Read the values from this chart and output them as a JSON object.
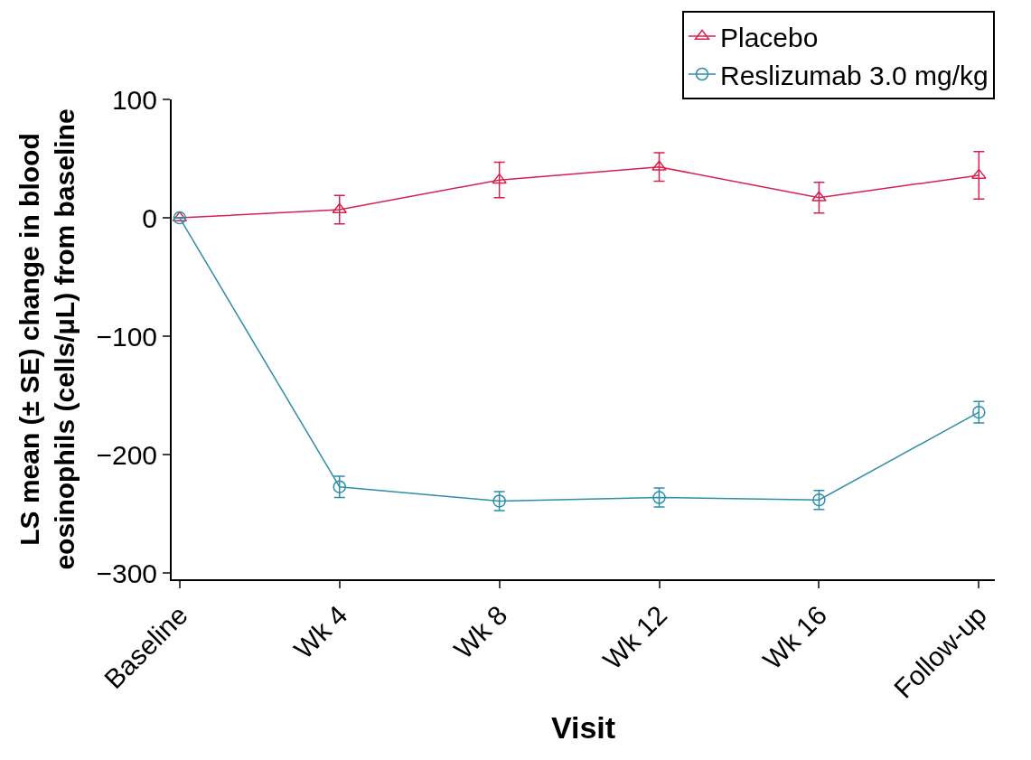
{
  "chart_data": {
    "type": "line",
    "xlabel": "Visit",
    "ylabel": "LS mean (± SE) change in blood\neosinophils (cells/μL) from baseline",
    "categories": [
      "Baseline",
      "Wk 4",
      "Wk 8",
      "Wk 12",
      "Wk 16",
      "Follow-up"
    ],
    "series": [
      {
        "name": "Placebo",
        "color": "#d6204f",
        "marker": "triangle",
        "values": [
          0,
          7,
          32,
          43,
          17,
          36
        ],
        "errors": [
          null,
          12,
          15,
          12,
          13,
          20
        ]
      },
      {
        "name": "Reslizumab 3.0 mg/kg",
        "color": "#2e8fa8",
        "marker": "circle",
        "values": [
          0,
          -227,
          -239,
          -236,
          -238,
          -164
        ],
        "errors": [
          null,
          9,
          8,
          8,
          8,
          9
        ]
      }
    ],
    "ylim": [
      -305,
      100
    ],
    "yticks": [
      -300,
      -200,
      -100,
      0,
      100
    ],
    "legend": "top right",
    "line_style": "solid"
  }
}
